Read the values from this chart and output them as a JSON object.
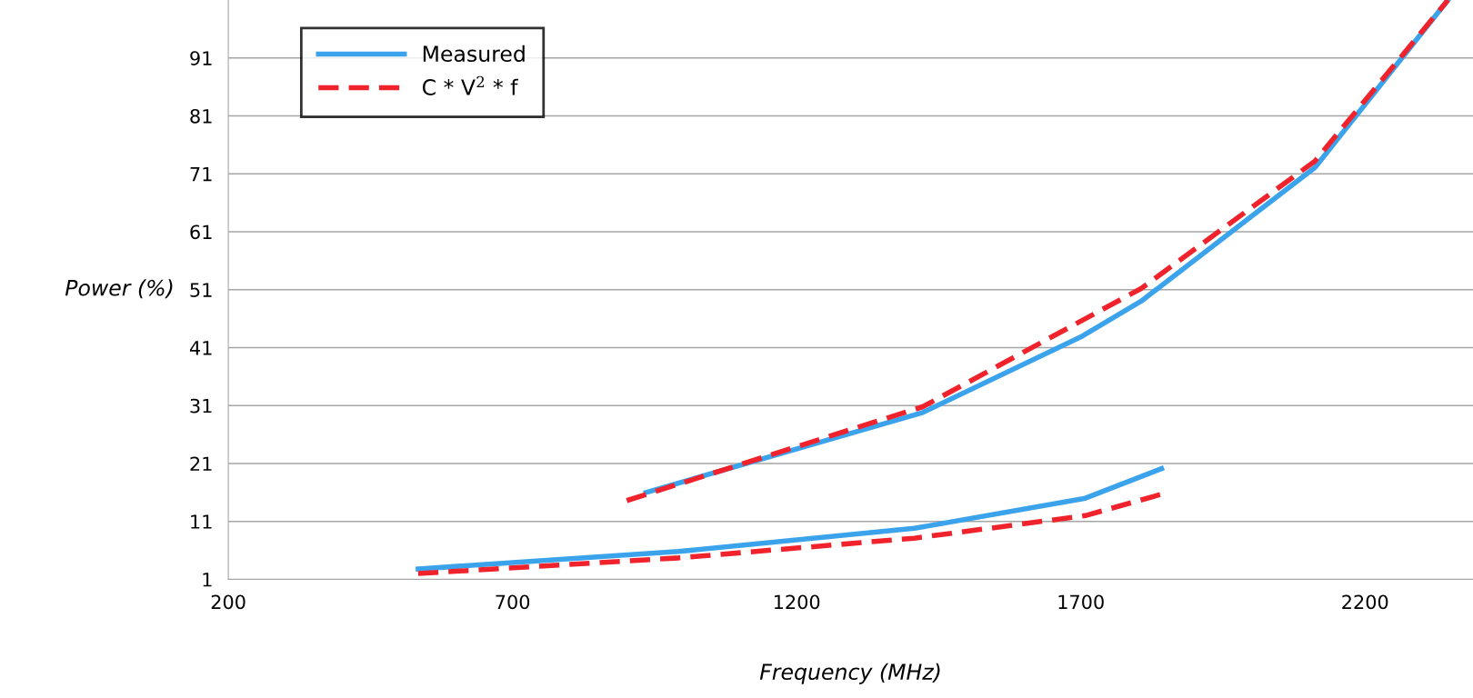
{
  "chart_data": {
    "type": "line",
    "xlabel": "Frequency (MHz)",
    "ylabel": "Power (%)",
    "series": [
      {
        "name": "Measured",
        "color": "#3ba3ec",
        "line_style": "solid",
        "x": [
          534,
          992,
          1407,
          1708,
          1842,
          null,
          935,
          1422,
          1703,
          1806,
          2112,
          2346
        ],
        "values": [
          2.8,
          5.8,
          9.8,
          15.0,
          20.1,
          null,
          16.0,
          29.8,
          43.0,
          49.0,
          72.1,
          101
        ]
      },
      {
        "name": "C * V$^{2}$ * f",
        "color": "#f0232d",
        "line_style": "dashed",
        "x": [
          534,
          992,
          1407,
          1708,
          1842,
          null,
          901,
          1422,
          1806,
          2112,
          2346
        ],
        "values": [
          2.0,
          4.7,
          8.1,
          12.0,
          15.7,
          null,
          14.6,
          30.8,
          51.2,
          73.2,
          101
        ]
      }
    ],
    "xlim": [
      200,
      2390
    ],
    "xticks": [
      200,
      700,
      1200,
      1700,
      2200
    ],
    "ylim": [
      1,
      101
    ],
    "yticks": [
      1,
      11,
      21,
      31,
      41,
      51,
      61,
      71,
      81,
      91
    ],
    "grid": "y",
    "legend": "top left",
    "marker": "none"
  }
}
